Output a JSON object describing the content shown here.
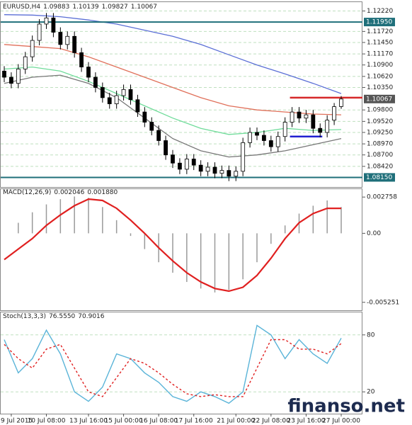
{
  "chart_data": [
    {
      "type": "candlestick",
      "title": "EURUSD,H4",
      "header_values": [
        1.09883,
        1.10139,
        1.09827,
        1.10067
      ],
      "categories": [
        null,
        "9 Jul 2015",
        null,
        null,
        null,
        null,
        "10 Jul 08:00",
        null,
        null,
        null,
        null,
        null,
        "13 Jul 16:00",
        null,
        null,
        null,
        null,
        "15 Jul 00:00",
        null,
        null,
        null,
        null,
        "16 Jul 08:00",
        null,
        null,
        null,
        null,
        "17 Jul 16:00",
        null,
        null,
        null,
        null,
        null,
        "21 Jul 00:00",
        null,
        null,
        null,
        null,
        "22 Jul 08:00",
        null,
        null,
        null,
        null,
        "23 Jul 16:00",
        null,
        null,
        null,
        null,
        "27 Jul 00:00"
      ],
      "open": [
        1.1075,
        1.106,
        1.1045,
        1.108,
        1.111,
        1.115,
        1.119,
        1.1205,
        1.117,
        1.114,
        1.116,
        1.112,
        1.1085,
        1.106,
        1.1035,
        1.101,
        1.0995,
        1.1015,
        1.103,
        1.1005,
        1.0975,
        1.095,
        1.093,
        1.0905,
        1.087,
        1.085,
        1.0835,
        1.086,
        1.0845,
        1.083,
        1.084,
        1.0825,
        1.0832,
        1.0818,
        1.083,
        1.09,
        1.0925,
        1.0918,
        1.0905,
        1.089,
        1.0915,
        1.095,
        1.0975,
        1.096,
        1.0968,
        1.0935,
        1.0925,
        1.0955,
        1.09883
      ],
      "high": [
        1.1087,
        1.1072,
        1.1092,
        1.1122,
        1.1162,
        1.1202,
        1.1217,
        1.1217,
        1.1182,
        1.1172,
        1.1172,
        1.1132,
        1.1097,
        1.1072,
        1.1047,
        1.1022,
        1.1027,
        1.1042,
        1.1042,
        1.1017,
        1.0987,
        1.0962,
        1.0942,
        1.0917,
        1.0882,
        1.0862,
        1.0872,
        1.0872,
        1.0857,
        1.0852,
        1.0852,
        1.0844,
        1.0844,
        1.0842,
        1.0912,
        1.0937,
        1.0937,
        1.093,
        1.0917,
        1.0927,
        1.0962,
        1.0987,
        1.0987,
        1.098,
        1.098,
        1.0947,
        1.0967,
        1.0997,
        1.10139
      ],
      "low": [
        1.1048,
        1.1033,
        1.1033,
        1.1068,
        1.1098,
        1.1138,
        1.1178,
        1.1158,
        1.1128,
        1.1128,
        1.1108,
        1.1073,
        1.1048,
        1.1023,
        1.0998,
        1.0983,
        1.0983,
        1.1003,
        1.0993,
        1.0963,
        1.0938,
        1.0918,
        1.0893,
        1.0858,
        1.0838,
        1.0823,
        1.0823,
        1.0833,
        1.0818,
        1.0818,
        1.0813,
        1.0813,
        1.0806,
        1.0806,
        1.0818,
        1.0888,
        1.0906,
        1.0893,
        1.0878,
        1.0878,
        1.0903,
        1.0938,
        1.0948,
        1.0948,
        1.0923,
        1.0913,
        1.0913,
        1.0943,
        1.09827
      ],
      "close": [
        1.106,
        1.1045,
        1.108,
        1.111,
        1.115,
        1.119,
        1.1205,
        1.117,
        1.114,
        1.116,
        1.112,
        1.1085,
        1.106,
        1.1035,
        1.101,
        1.0995,
        1.1015,
        1.103,
        1.1005,
        1.0975,
        1.095,
        1.093,
        1.0905,
        1.087,
        1.085,
        1.0835,
        1.086,
        1.0845,
        1.083,
        1.084,
        1.0825,
        1.0832,
        1.0818,
        1.083,
        1.09,
        1.0925,
        1.0918,
        1.0905,
        1.089,
        1.0915,
        1.095,
        1.0975,
        1.096,
        1.0968,
        1.0935,
        1.0925,
        1.0955,
        1.0988,
        1.10067
      ],
      "up_color": "#ffffff",
      "down_color": "#000000",
      "series": [
        {
          "color": "#5b6fd6",
          "x": [
            0,
            4,
            8,
            12,
            16,
            20,
            24,
            28,
            32,
            36,
            40,
            44,
            48
          ],
          "values": [
            1.1213,
            1.1212,
            1.1208,
            1.12,
            1.119,
            1.1175,
            1.116,
            1.114,
            1.1115,
            1.109,
            1.1068,
            1.1045,
            1.102
          ]
        },
        {
          "color": "#e0705a",
          "x": [
            0,
            4,
            8,
            12,
            16,
            20,
            24,
            28,
            32,
            36,
            40,
            44,
            48
          ],
          "values": [
            1.114,
            1.1135,
            1.113,
            1.111,
            1.1085,
            1.106,
            1.1035,
            1.101,
            1.099,
            1.098,
            1.0975,
            1.097,
            1.0968
          ]
        },
        {
          "color": "#6fdc9a",
          "x": [
            0,
            4,
            8,
            12,
            16,
            20,
            24,
            28,
            32,
            36,
            40,
            44,
            48
          ],
          "values": [
            1.108,
            1.1085,
            1.1075,
            1.105,
            1.102,
            1.099,
            1.096,
            1.0935,
            1.092,
            1.0925,
            1.0935,
            1.093,
            1.0932
          ]
        },
        {
          "color": "#777777",
          "x": [
            0,
            4,
            8,
            12,
            16,
            20,
            24,
            28,
            32,
            36,
            40,
            44,
            48
          ],
          "values": [
            1.1045,
            1.106,
            1.1065,
            1.1045,
            1.101,
            1.096,
            1.091,
            1.088,
            1.0865,
            1.087,
            1.088,
            1.0895,
            1.091
          ]
        }
      ],
      "ylim": [
        1.0795,
        1.1235
      ],
      "yticks": [
        {
          "value": 1.0842,
          "label": "1.08420"
        },
        {
          "value": 1.087,
          "label": "1.08700"
        },
        {
          "value": 1.0897,
          "label": "1.08970"
        },
        {
          "value": 1.0925,
          "label": "1.09250"
        },
        {
          "value": 1.0952,
          "label": "1.09520"
        },
        {
          "value": 1.098,
          "label": "1.09800"
        },
        {
          "value": 1.1035,
          "label": "1.10350"
        },
        {
          "value": 1.1062,
          "label": "1.10620"
        },
        {
          "value": 1.109,
          "label": "1.10900"
        },
        {
          "value": 1.1117,
          "label": "1.11170"
        },
        {
          "value": 1.1145,
          "label": "1.11450"
        },
        {
          "value": 1.1172,
          "label": "1.11720"
        },
        {
          "value": 1.1222,
          "label": "1.12220"
        }
      ],
      "grid": true,
      "last_price": {
        "value": 1.10067,
        "label": "1.10067"
      },
      "levels": [
        {
          "value": 1.1195,
          "label": "1.11950",
          "color": "#1f6f7a"
        },
        {
          "value": 1.0815,
          "label": "1.08150",
          "color": "#1f6f7a"
        }
      ],
      "lines": [
        {
          "value": 1.101,
          "color": "#d62728"
        },
        {
          "value": 1.0915,
          "color": "#2020d0"
        }
      ]
    },
    {
      "type": "macd",
      "title": "MACD(12,26,9)",
      "header_values": [
        0.002046,
        {
          "value": 0.00188,
          "label": "0.001880"
        }
      ],
      "x": [
        0,
        2,
        4,
        6,
        8,
        10,
        12,
        14,
        16,
        18,
        20,
        22,
        24,
        26,
        28,
        30,
        32,
        34,
        36,
        38,
        40,
        42,
        44,
        46,
        48
      ],
      "histogram": {
        "color": "#9a9a9a",
        "values": [
          0.0,
          0.0008,
          0.0016,
          0.0022,
          0.0026,
          0.0028,
          0.0027,
          0.002,
          0.001,
          -0.0002,
          -0.0012,
          -0.0022,
          -0.003,
          -0.0037,
          -0.0042,
          -0.0045,
          -0.0043,
          -0.0035,
          -0.0022,
          -0.0008,
          0.0006,
          0.0015,
          0.0021,
          0.0025,
          0.002
        ]
      },
      "signal": {
        "color": "#e02020",
        "values": [
          -0.002,
          -0.0012,
          -0.0004,
          0.0006,
          0.0014,
          0.0021,
          0.0026,
          0.0025,
          0.0019,
          0.001,
          0.0,
          -0.0011,
          -0.0021,
          -0.003,
          -0.0037,
          -0.0042,
          -0.0044,
          -0.0041,
          -0.0032,
          -0.0019,
          -0.0004,
          0.0008,
          0.0015,
          0.0019,
          0.0019
        ]
      },
      "ylim": [
        -0.0058,
        0.0032
      ],
      "yticks": [
        0.002758,
        {
          "value": 0,
          "label": "0.00"
        },
        -0.005251
      ]
    },
    {
      "type": "stoch",
      "title": "Stoch(13,3,3)",
      "header_values": [
        {
          "value": 76.555,
          "label": "76.5550"
        },
        70.9016
      ],
      "x": [
        0,
        2,
        4,
        6,
        8,
        10,
        12,
        14,
        16,
        18,
        20,
        22,
        24,
        26,
        28,
        30,
        32,
        34,
        36,
        38,
        40,
        42,
        44,
        46,
        48
      ],
      "series": [
        {
          "color": "#5ab4d8",
          "values": [
            75,
            40,
            55,
            85,
            60,
            20,
            10,
            25,
            60,
            55,
            40,
            30,
            15,
            10,
            20,
            15,
            8,
            20,
            90,
            80,
            55,
            75,
            60,
            50,
            76.555
          ]
        },
        {
          "color": "#e02020",
          "dashed": true,
          "values": [
            70,
            55,
            45,
            65,
            70,
            45,
            20,
            15,
            35,
            55,
            50,
            40,
            28,
            18,
            15,
            17,
            15,
            15,
            45,
            75,
            75,
            65,
            65,
            60,
            70.9016
          ]
        }
      ],
      "ylim": [
        0,
        100
      ],
      "yticks": [
        20,
        80
      ],
      "grid": true
    }
  ],
  "watermark": "finanso.net"
}
